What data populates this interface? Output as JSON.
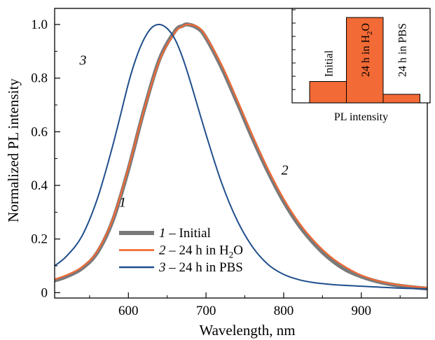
{
  "chart_data": {
    "type": "line",
    "xlabel": "Wavelength, nm",
    "ylabel": "Normalized PL intensity",
    "xlim": [
      505,
      985
    ],
    "ylim": [
      -0.02,
      1.06
    ],
    "x_ticks": [
      600,
      700,
      800,
      900
    ],
    "y_ticks": [
      0,
      0.2,
      0.4,
      0.6,
      0.8,
      1.0
    ],
    "x_tick_labels": [
      "600",
      "700",
      "800",
      "900"
    ],
    "y_tick_labels": [
      "0",
      "0.2",
      "0.4",
      "0.6",
      "0.8",
      "1.0"
    ],
    "grid": false,
    "legend_position": "bottom-left",
    "series": [
      {
        "name": "1 – Initial",
        "number": "1",
        "text": " – Initial",
        "color": "#7a7a7a",
        "x": [
          505,
          520,
          540,
          560,
          580,
          600,
          620,
          640,
          660,
          670,
          677,
          690,
          700,
          720,
          740,
          760,
          780,
          800,
          820,
          840,
          860,
          880,
          900,
          920,
          940,
          960,
          985
        ],
        "y": [
          0.045,
          0.06,
          0.09,
          0.15,
          0.27,
          0.46,
          0.68,
          0.87,
          0.975,
          0.995,
          1.0,
          0.985,
          0.95,
          0.84,
          0.71,
          0.575,
          0.45,
          0.34,
          0.25,
          0.18,
          0.125,
          0.085,
          0.06,
          0.042,
          0.03,
          0.022,
          0.015
        ]
      },
      {
        "name": "2 – 24 h in H2O",
        "number": "2",
        "text_before": " – 24 h in H",
        "subscript": "2",
        "text_after": "O",
        "color": "#f26a35",
        "x": [
          505,
          520,
          540,
          560,
          580,
          600,
          620,
          640,
          660,
          670,
          677,
          690,
          700,
          720,
          740,
          760,
          780,
          800,
          820,
          840,
          860,
          880,
          900,
          920,
          940,
          960,
          985
        ],
        "y": [
          0.05,
          0.065,
          0.095,
          0.155,
          0.275,
          0.465,
          0.68,
          0.865,
          0.97,
          0.993,
          1.0,
          0.99,
          0.955,
          0.85,
          0.72,
          0.585,
          0.46,
          0.35,
          0.26,
          0.19,
          0.135,
          0.095,
          0.065,
          0.045,
          0.033,
          0.025,
          0.018
        ]
      },
      {
        "name": "3 – 24 h in PBS",
        "number": "3",
        "text": " – 24 h in PBS",
        "color": "#1f4e8c",
        "x": [
          505,
          520,
          540,
          560,
          580,
          600,
          610,
          620,
          630,
          640,
          650,
          660,
          670,
          680,
          700,
          720,
          740,
          760,
          780,
          800,
          820,
          840,
          860,
          880,
          900,
          920,
          940,
          960,
          985
        ],
        "y": [
          0.1,
          0.135,
          0.21,
          0.35,
          0.55,
          0.78,
          0.875,
          0.945,
          0.988,
          1.0,
          0.985,
          0.945,
          0.875,
          0.785,
          0.59,
          0.41,
          0.27,
          0.17,
          0.105,
          0.068,
          0.048,
          0.037,
          0.031,
          0.027,
          0.024,
          0.021,
          0.018,
          0.016,
          0.014
        ]
      }
    ],
    "curve_labels": [
      {
        "text": "1",
        "x": 588,
        "y": 0.32
      },
      {
        "text": "2",
        "x": 797,
        "y": 0.44
      },
      {
        "text": "3",
        "x": 537,
        "y": 0.85
      }
    ],
    "inset": {
      "type": "bar",
      "xlabel": "PL intensity",
      "color": "#f26a35",
      "categories": [
        "Initial",
        "24 h in H2O",
        "24 h in PBS"
      ],
      "labels": [
        {
          "text": "Initial"
        },
        {
          "text_before": "24 h in H",
          "subscript": "2",
          "text_after": "O"
        },
        {
          "text": "24 h in PBS"
        }
      ],
      "values": [
        0.25,
        1.0,
        0.1
      ],
      "ylim": [
        0,
        1.0
      ]
    }
  }
}
